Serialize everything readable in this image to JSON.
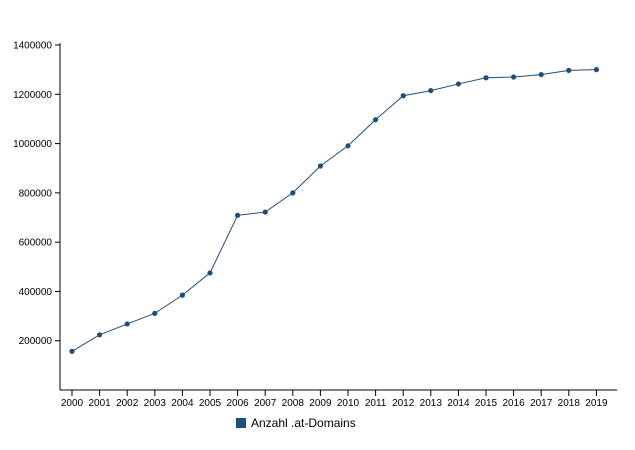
{
  "chart_data": {
    "type": "line",
    "categories": [
      "2000",
      "2001",
      "2002",
      "2003",
      "2004",
      "2005",
      "2006",
      "2007",
      "2008",
      "2009",
      "2010",
      "2011",
      "2012",
      "2013",
      "2014",
      "2015",
      "2016",
      "2017",
      "2018",
      "2019"
    ],
    "series": [
      {
        "name": "Anzahl .at-Domains",
        "color": "#1f4e79",
        "values": [
          157000,
          224000,
          268000,
          311000,
          385000,
          475000,
          709000,
          722000,
          800000,
          909000,
          991000,
          1097000,
          1194000,
          1215000,
          1242000,
          1267000,
          1270000,
          1280000,
          1297000,
          1300000
        ]
      }
    ],
    "title": "",
    "xlabel": "",
    "ylabel": "",
    "ylim": [
      0,
      1400000
    ],
    "yticks": [
      200000,
      400000,
      600000,
      800000,
      1000000,
      1200000,
      1400000
    ],
    "grid": false,
    "legend_position": "bottom"
  }
}
